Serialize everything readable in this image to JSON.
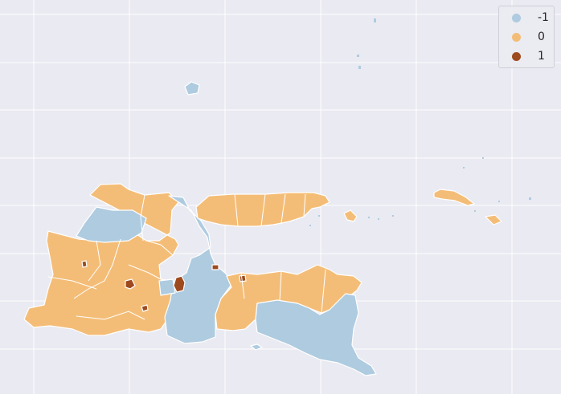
{
  "legend": {
    "items": [
      {
        "label": "-1",
        "color": "#aecbe0"
      },
      {
        "label": "0",
        "color": "#f4bd77"
      },
      {
        "label": "1",
        "color": "#9e4a1f"
      }
    ]
  },
  "colors": {
    "background": "#eaeaf2",
    "grid": "#ffffff",
    "border": "#ffffff"
  },
  "map": {
    "grid": true,
    "legend_position": "top-right"
  }
}
